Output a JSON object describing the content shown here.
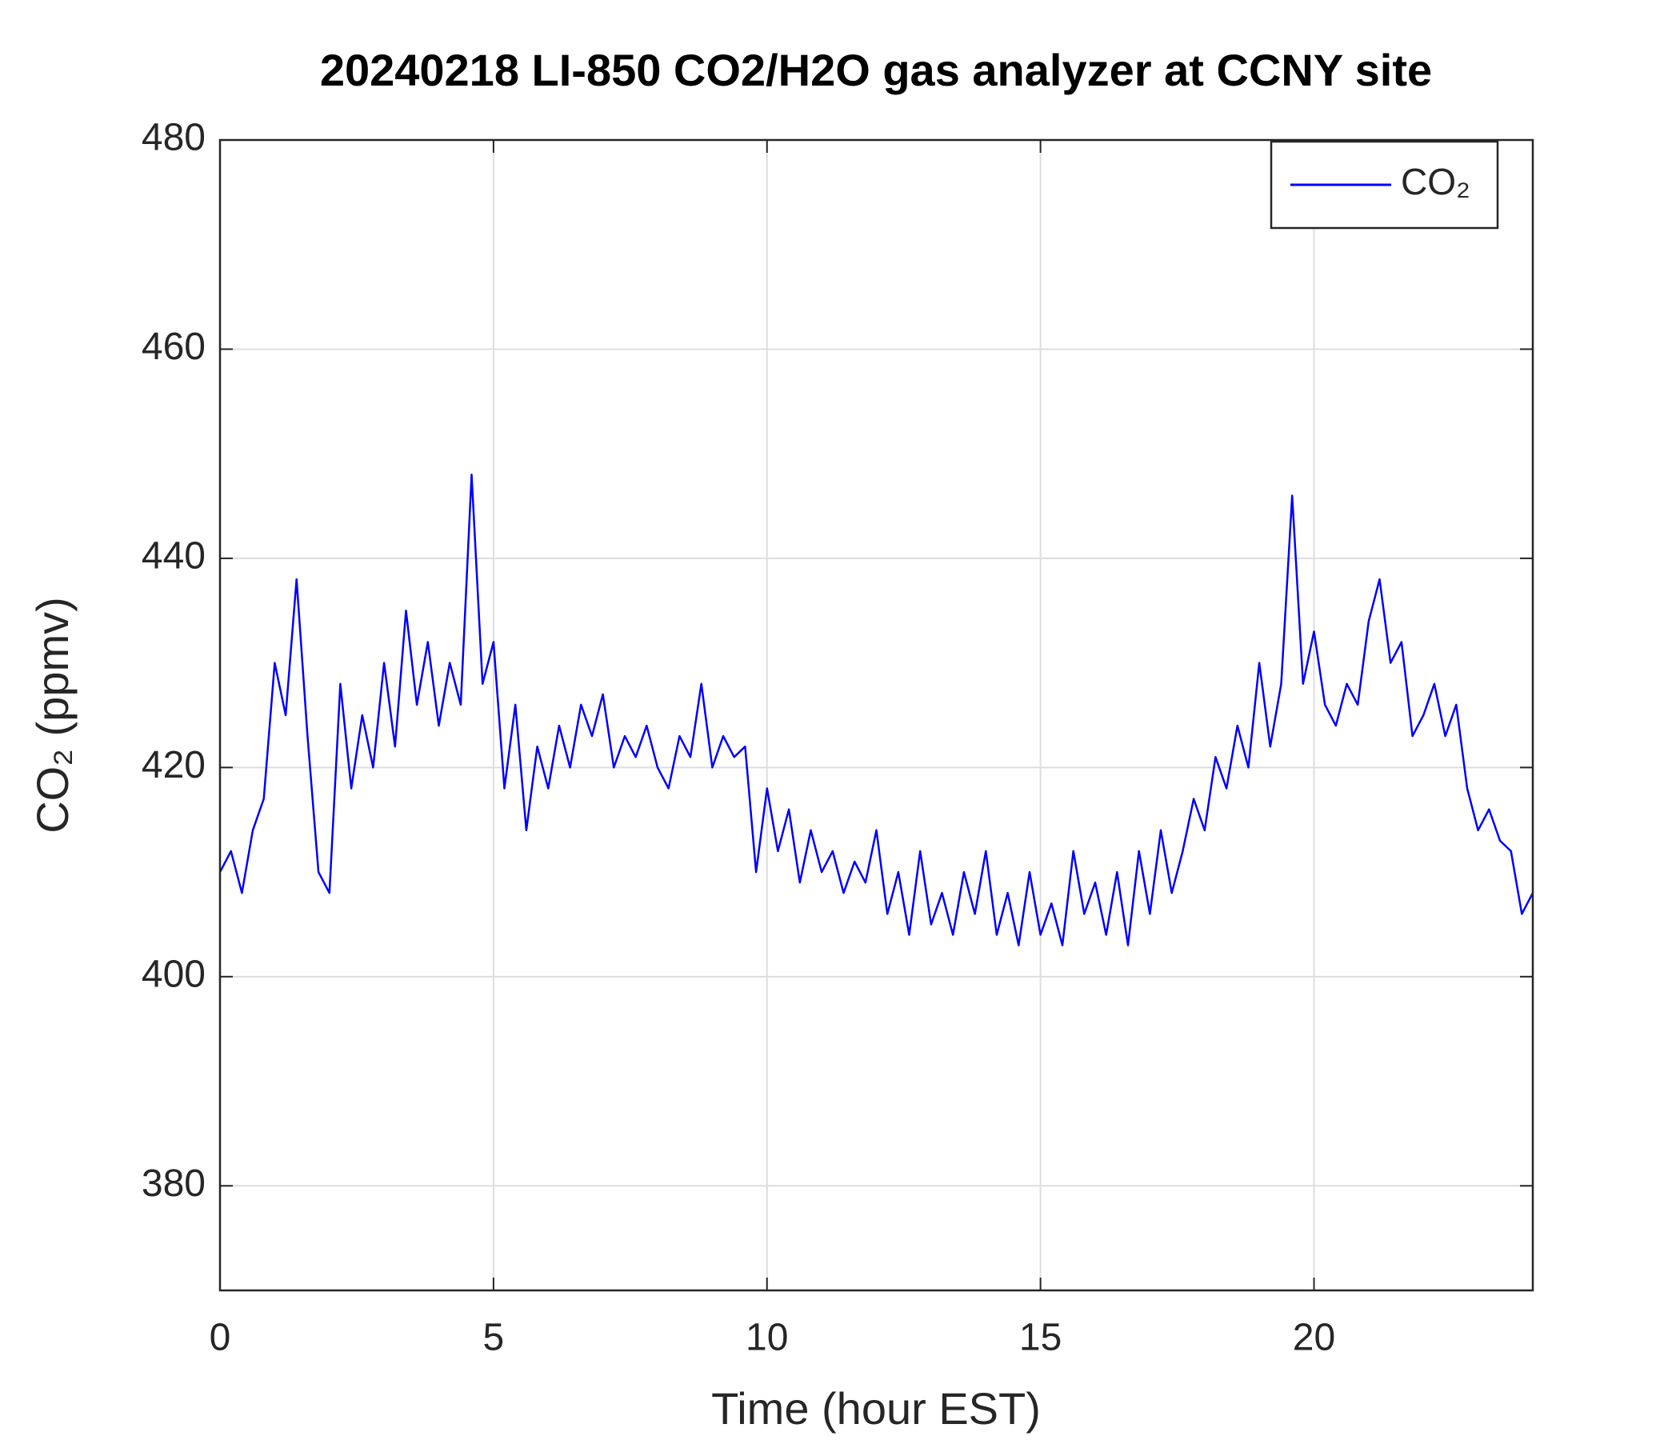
{
  "chart_data": {
    "type": "line",
    "title": "20240218 LI-850 CO2/H2O gas analyzer at CCNY site",
    "xlabel": "Time (hour EST)",
    "ylabel": "CO₂ (ppmv)",
    "xlim": [
      0,
      24
    ],
    "xticks": [
      0,
      5,
      10,
      15,
      20
    ],
    "ylim": [
      370,
      480
    ],
    "yticks": [
      380,
      400,
      420,
      440,
      460,
      480
    ],
    "grid": true,
    "legend": "upper right",
    "x": [
      0,
      0.2,
      0.4,
      0.6,
      0.8,
      1,
      1.2,
      1.4,
      1.6,
      1.8,
      2,
      2.2,
      2.4,
      2.6,
      2.8,
      3,
      3.2,
      3.4,
      3.6,
      3.8,
      4,
      4.2,
      4.4,
      4.6,
      4.8,
      5,
      5.2,
      5.4,
      5.6,
      5.8,
      6,
      6.2,
      6.4,
      6.6,
      6.8,
      7,
      7.2,
      7.4,
      7.6,
      7.8,
      8,
      8.2,
      8.4,
      8.6,
      8.8,
      9,
      9.2,
      9.4,
      9.6,
      9.8,
      10,
      10.2,
      10.4,
      10.6,
      10.8,
      11,
      11.2,
      11.4,
      11.6,
      11.8,
      12,
      12.2,
      12.4,
      12.6,
      12.8,
      13,
      13.2,
      13.4,
      13.6,
      13.8,
      14,
      14.2,
      14.4,
      14.6,
      14.8,
      15,
      15.2,
      15.4,
      15.6,
      15.8,
      16,
      16.2,
      16.4,
      16.6,
      16.8,
      17,
      17.2,
      17.4,
      17.6,
      17.8,
      18,
      18.2,
      18.4,
      18.6,
      18.8,
      19,
      19.2,
      19.4,
      19.6,
      19.8,
      20,
      20.2,
      20.4,
      20.6,
      20.8,
      21,
      21.2,
      21.4,
      21.6,
      21.8,
      22,
      22.2,
      22.4,
      22.6,
      22.8,
      23,
      23.2,
      23.4,
      23.6,
      23.8,
      24
    ],
    "series": [
      {
        "name": "CO₂",
        "color": "#0000ff",
        "values": [
          410,
          412,
          408,
          414,
          417,
          430,
          425,
          438,
          423,
          410,
          408,
          428,
          418,
          425,
          420,
          430,
          422,
          435,
          426,
          432,
          424,
          430,
          426,
          448,
          428,
          432,
          418,
          426,
          414,
          422,
          418,
          424,
          420,
          426,
          423,
          427,
          420,
          423,
          421,
          424,
          420,
          418,
          423,
          421,
          428,
          420,
          423,
          421,
          422,
          410,
          418,
          412,
          416,
          409,
          414,
          410,
          412,
          408,
          411,
          409,
          414,
          406,
          410,
          404,
          412,
          405,
          408,
          404,
          410,
          406,
          412,
          404,
          408,
          403,
          410,
          404,
          407,
          403,
          412,
          406,
          409,
          404,
          410,
          403,
          412,
          406,
          414,
          408,
          412,
          417,
          414,
          421,
          418,
          424,
          420,
          430,
          422,
          428,
          446,
          428,
          433,
          426,
          424,
          428,
          426,
          434,
          438,
          430,
          432,
          423,
          425,
          428,
          423,
          426,
          418,
          414,
          416,
          413,
          412,
          406,
          408
        ]
      }
    ]
  }
}
